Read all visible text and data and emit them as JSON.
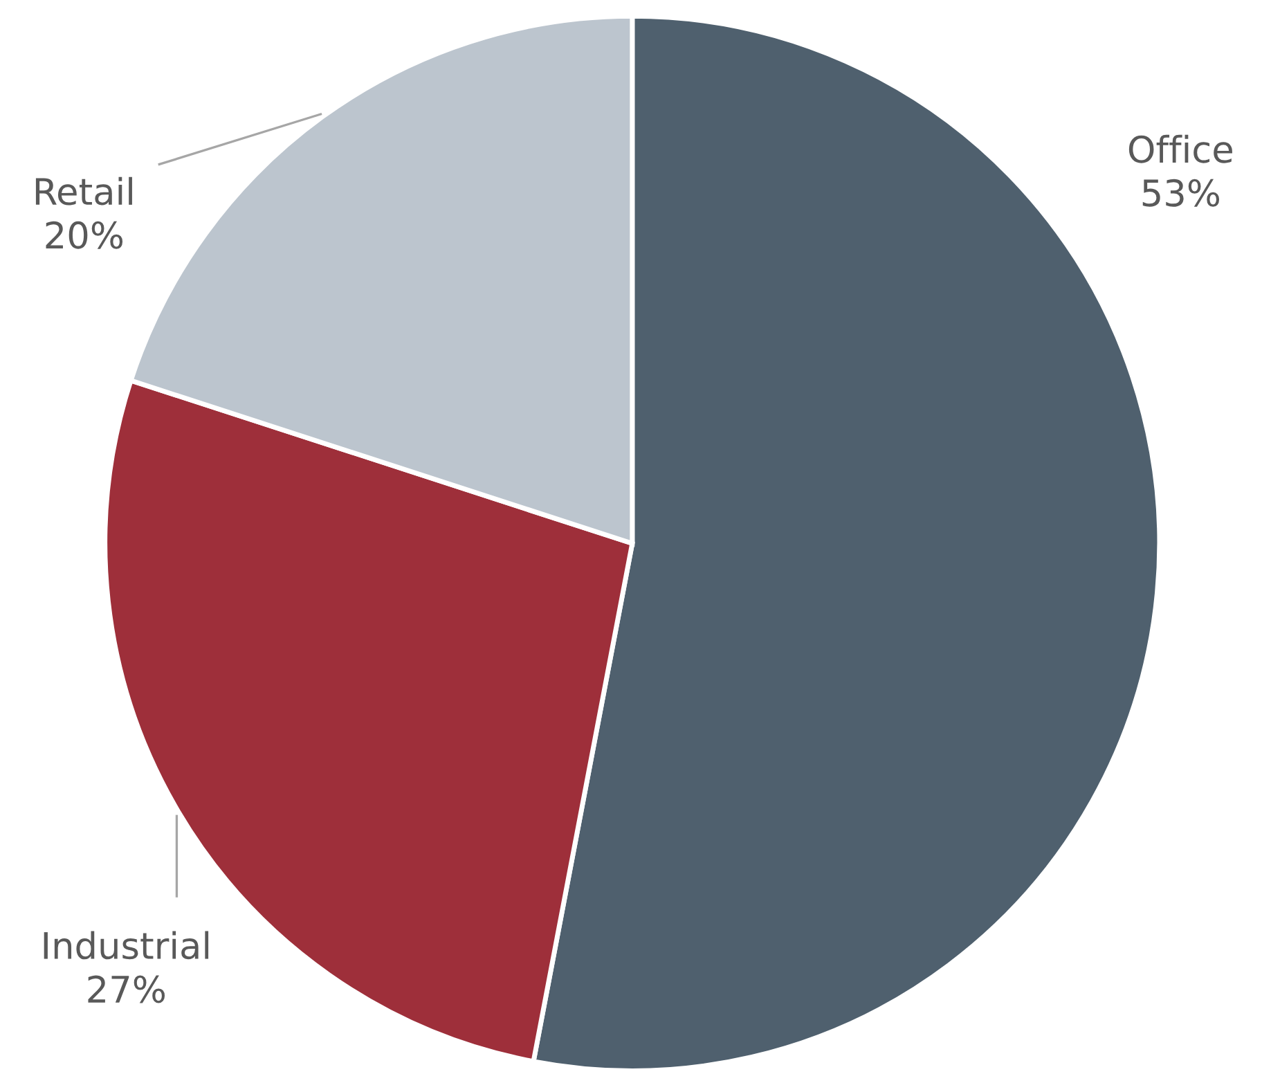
{
  "chart_data": {
    "type": "pie",
    "categories": [
      "Office",
      "Industrial",
      "Retail"
    ],
    "values": [
      53,
      27,
      20
    ],
    "value_labels": [
      "53%",
      "27%",
      "20%"
    ],
    "colors": [
      "#4f606e",
      "#9e2f3a",
      "#bcc5ce"
    ]
  }
}
